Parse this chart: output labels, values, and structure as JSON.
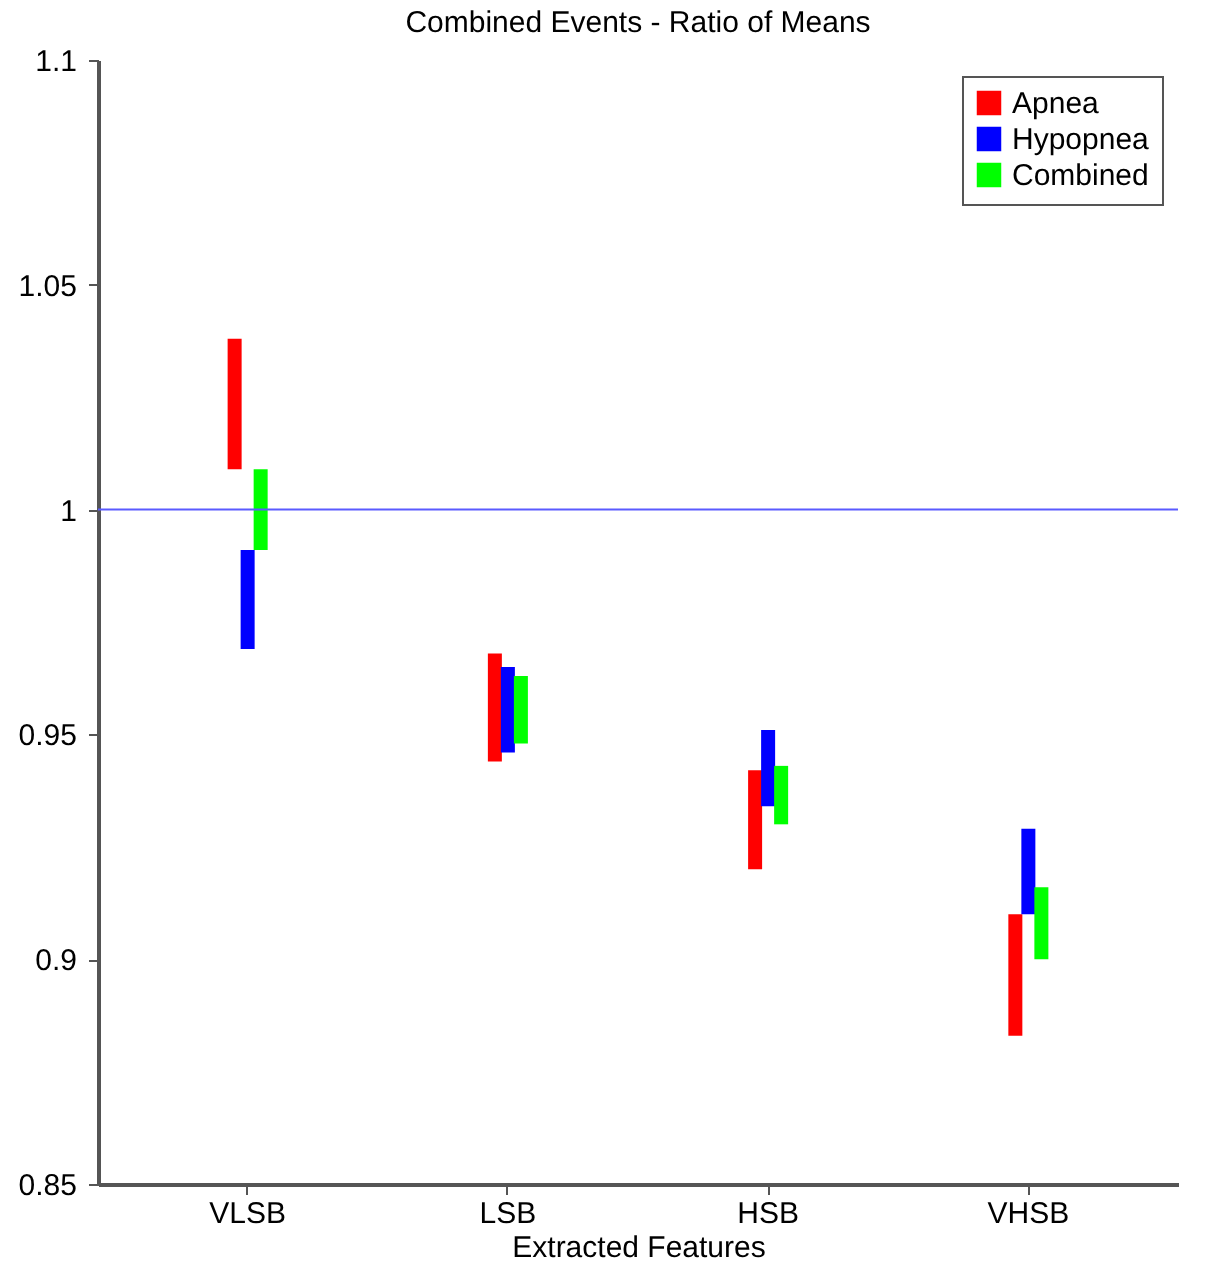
{
  "chart_data": {
    "type": "bar",
    "title": "Combined Events - Ratio of Means",
    "xlabel": "Extracted Features",
    "categories": [
      "VLSB",
      "LSB",
      "HSB",
      "VHSB"
    ],
    "series": [
      {
        "name": "Apnea",
        "color": "#ff0000",
        "base": [
          1.009,
          0.944,
          0.92,
          0.883
        ],
        "values": [
          0.029,
          0.024,
          0.022,
          0.027
        ]
      },
      {
        "name": "Hypopnea",
        "color": "#0000ff",
        "base": [
          0.969,
          0.946,
          0.934,
          0.91
        ],
        "values": [
          0.022,
          0.019,
          0.017,
          0.019
        ]
      },
      {
        "name": "Combined",
        "color": "#00ff00",
        "base": [
          0.991,
          0.948,
          0.93,
          0.9
        ],
        "values": [
          0.018,
          0.015,
          0.013,
          0.016
        ]
      }
    ],
    "ylim": [
      0.85,
      1.1
    ],
    "yticks": [
      0.85,
      0.9,
      0.95,
      1,
      1.05,
      1.1
    ],
    "ref_lines": [
      {
        "axis": "y",
        "value": 1,
        "color": "#5a5aff"
      }
    ],
    "grid": false,
    "legend": "top right"
  }
}
